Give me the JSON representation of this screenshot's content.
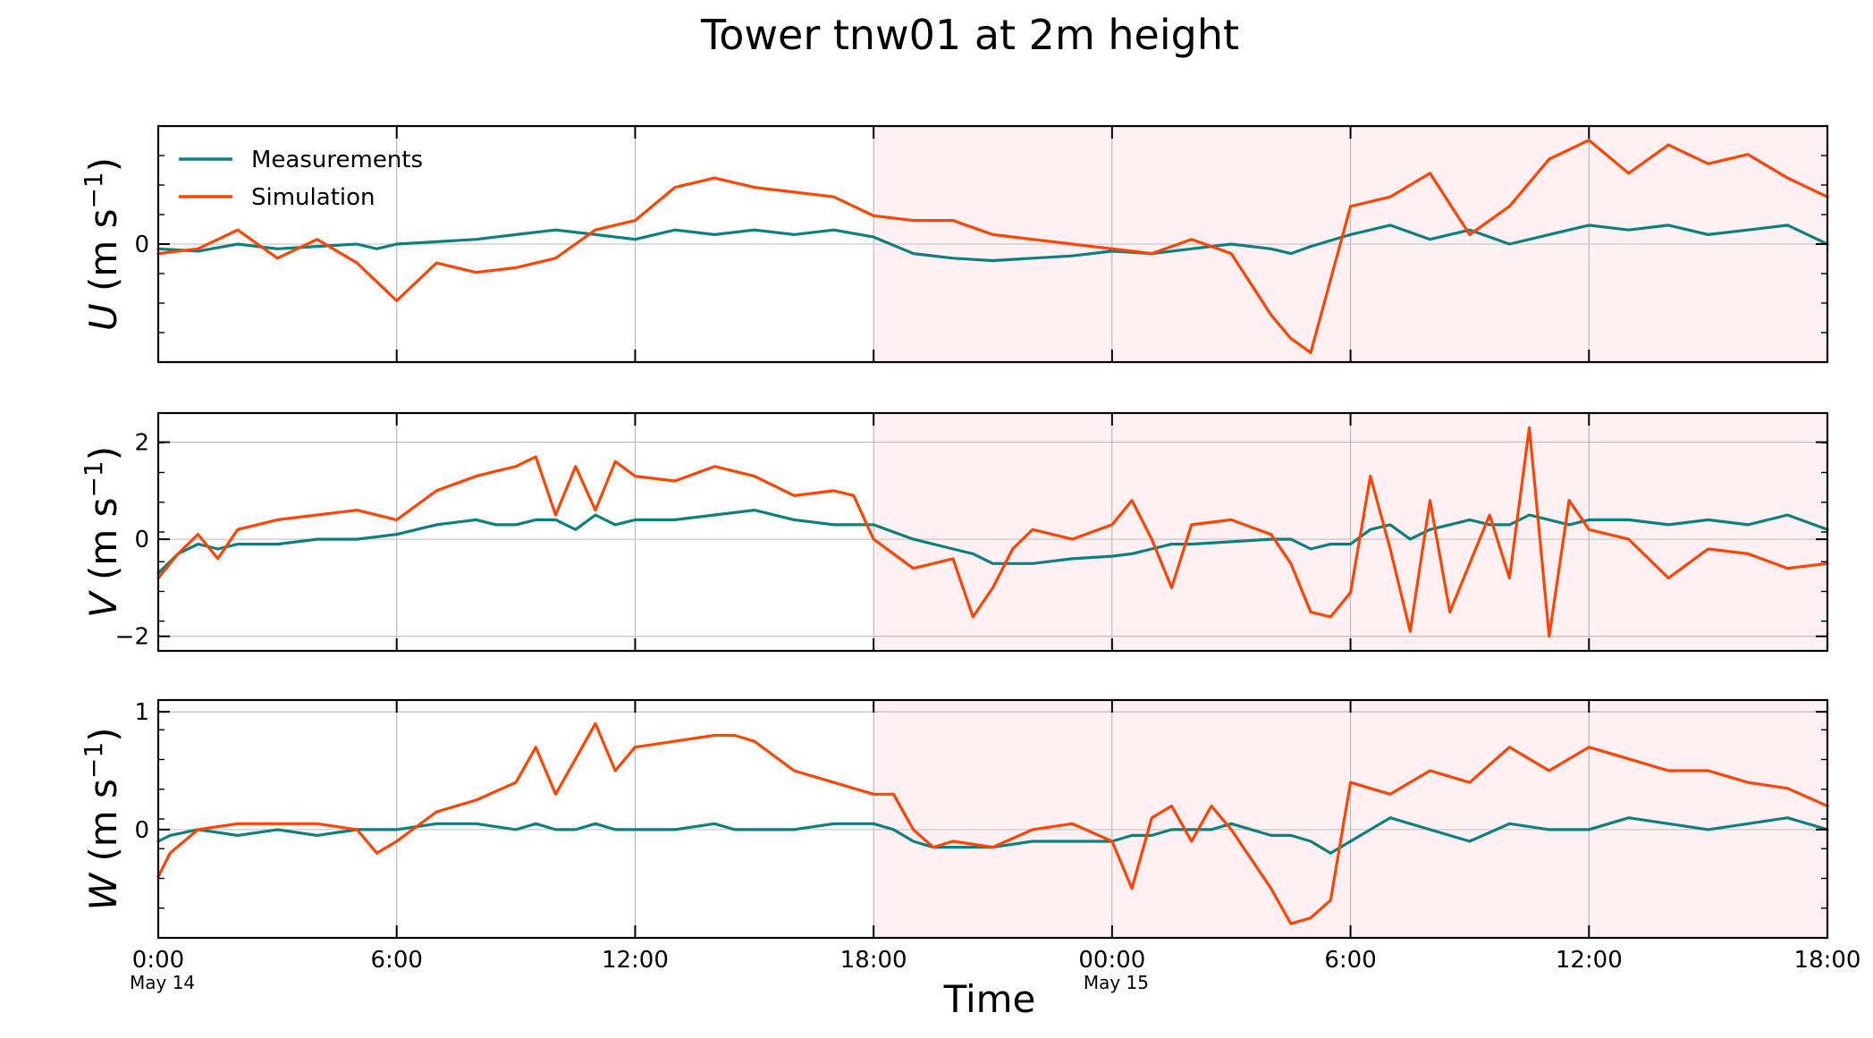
{
  "title": "Tower tnw01 at 2m height",
  "x_axis": {
    "title": "Time",
    "tick_labels": [
      "0:00",
      "6:00",
      "12:00",
      "18:00",
      "00:00",
      "6:00",
      "12:00",
      "18:00"
    ],
    "date_labels": [
      {
        "label": "May 14",
        "tick": 0
      },
      {
        "label": "May 15",
        "tick": 4
      }
    ],
    "range_hours": [
      0,
      42
    ]
  },
  "shaded_region": {
    "from_hours": 18,
    "to_hours": 42,
    "color": "#fff0f4"
  },
  "legend": {
    "placement": "upper-left of first panel",
    "items": [
      {
        "label": "Measurements",
        "color": "#0e7f7f"
      },
      {
        "label": "Simulation",
        "color": "#ff4500"
      }
    ]
  },
  "chart_data": [
    {
      "type": "line",
      "panel": "U",
      "ylabel": {
        "var": "U",
        "unit": "(m s",
        "exp": "−1",
        "close": ")"
      },
      "ylim": [
        -2.5,
        2.5
      ],
      "y_ticks": [
        {
          "value": 0,
          "label": "0"
        }
      ],
      "x_hours": [
        0,
        1,
        2,
        3,
        4,
        5,
        5.5,
        6,
        7,
        8,
        9,
        10,
        11,
        12,
        13,
        14,
        15,
        16,
        17,
        18,
        19,
        20,
        21,
        22,
        23,
        24,
        25,
        26,
        27,
        28,
        28.5,
        29,
        30,
        31,
        32,
        33,
        34,
        35,
        36,
        37,
        38,
        39,
        40,
        41,
        42
      ],
      "series": [
        {
          "name": "Measurements",
          "values": [
            -0.1,
            -0.15,
            0.0,
            -0.1,
            -0.05,
            0.0,
            -0.1,
            0.0,
            0.05,
            0.1,
            0.2,
            0.3,
            0.2,
            0.1,
            0.3,
            0.2,
            0.3,
            0.2,
            0.3,
            0.15,
            -0.2,
            -0.3,
            -0.35,
            -0.3,
            -0.25,
            -0.15,
            -0.2,
            -0.1,
            0.0,
            -0.1,
            -0.2,
            -0.05,
            0.2,
            0.4,
            0.1,
            0.3,
            0.0,
            0.2,
            0.4,
            0.3,
            0.4,
            0.2,
            0.3,
            0.4,
            0.0
          ]
        },
        {
          "name": "Simulation",
          "values": [
            -0.2,
            -0.1,
            0.3,
            -0.3,
            0.1,
            -0.4,
            -0.8,
            -1.2,
            -0.4,
            -0.6,
            -0.5,
            -0.3,
            0.3,
            0.5,
            1.2,
            1.4,
            1.2,
            1.1,
            1.0,
            0.6,
            0.5,
            0.5,
            0.2,
            0.1,
            0.0,
            -0.1,
            -0.2,
            0.1,
            -0.2,
            -1.5,
            -2.0,
            -2.3,
            0.8,
            1.0,
            1.5,
            0.2,
            0.8,
            1.8,
            2.2,
            1.5,
            2.1,
            1.7,
            1.9,
            1.4,
            1.0
          ]
        }
      ]
    },
    {
      "type": "line",
      "panel": "V",
      "ylabel": {
        "var": "V",
        "unit": "(m s",
        "exp": "−1",
        "close": ")"
      },
      "ylim": [
        -2.3,
        2.6
      ],
      "y_ticks": [
        {
          "value": 2,
          "label": "2"
        },
        {
          "value": 0,
          "label": "0"
        },
        {
          "value": -2,
          "label": "−2"
        }
      ],
      "x_hours": [
        0,
        0.5,
        1,
        1.5,
        2,
        3,
        4,
        5,
        6,
        7,
        8,
        8.5,
        9,
        9.5,
        10,
        10.5,
        11,
        11.5,
        12,
        13,
        14,
        15,
        16,
        17,
        17.5,
        18,
        19,
        20,
        20.5,
        21,
        21.5,
        22,
        23,
        24,
        24.5,
        25,
        25.5,
        26,
        27,
        28,
        28.5,
        29,
        29.5,
        30,
        30.5,
        31,
        31.5,
        32,
        32.5,
        33,
        33.5,
        34,
        34.5,
        35,
        35.5,
        36,
        37,
        38,
        39,
        40,
        41,
        42
      ],
      "series": [
        {
          "name": "Measurements",
          "values": [
            -0.7,
            -0.3,
            -0.1,
            -0.2,
            -0.1,
            -0.1,
            0.0,
            0.0,
            0.1,
            0.3,
            0.4,
            0.3,
            0.3,
            0.4,
            0.4,
            0.2,
            0.5,
            0.3,
            0.4,
            0.4,
            0.5,
            0.6,
            0.4,
            0.3,
            0.3,
            0.3,
            0.0,
            -0.2,
            -0.3,
            -0.5,
            -0.5,
            -0.5,
            -0.4,
            -0.35,
            -0.3,
            -0.2,
            -0.1,
            -0.1,
            -0.05,
            0.0,
            0.0,
            -0.2,
            -0.1,
            -0.1,
            0.2,
            0.3,
            0.0,
            0.2,
            0.3,
            0.4,
            0.3,
            0.3,
            0.5,
            0.4,
            0.3,
            0.4,
            0.4,
            0.3,
            0.4,
            0.3,
            0.5,
            0.2
          ]
        },
        {
          "name": "Simulation",
          "values": [
            -0.8,
            -0.3,
            0.1,
            -0.4,
            0.2,
            0.4,
            0.5,
            0.6,
            0.4,
            1.0,
            1.3,
            1.4,
            1.5,
            1.7,
            0.5,
            1.5,
            0.6,
            1.6,
            1.3,
            1.2,
            1.5,
            1.3,
            0.9,
            1.0,
            0.9,
            0.0,
            -0.6,
            -0.4,
            -1.6,
            -1.0,
            -0.2,
            0.2,
            0.0,
            0.3,
            0.8,
            0.0,
            -1.0,
            0.3,
            0.4,
            0.1,
            -0.5,
            -1.5,
            -1.6,
            -1.1,
            1.3,
            -0.2,
            -1.9,
            0.8,
            -1.5,
            -0.5,
            0.5,
            -0.8,
            2.3,
            -2.0,
            0.8,
            0.2,
            0.0,
            -0.8,
            -0.2,
            -0.3,
            -0.6,
            -0.5
          ]
        }
      ]
    },
    {
      "type": "line",
      "panel": "W",
      "ylabel": {
        "var": "W",
        "unit": "(m s",
        "exp": "−1",
        "close": ")"
      },
      "ylim": [
        -0.92,
        1.1
      ],
      "y_ticks": [
        {
          "value": 1,
          "label": "1"
        },
        {
          "value": 0,
          "label": "0"
        }
      ],
      "x_hours": [
        0,
        0.3,
        1,
        2,
        3,
        4,
        5,
        5.5,
        6,
        7,
        8,
        9,
        9.5,
        10,
        10.5,
        11,
        11.5,
        12,
        13,
        14,
        14.5,
        15,
        16,
        17,
        18,
        18.5,
        19,
        19.5,
        20,
        21,
        22,
        23,
        24,
        24.5,
        25,
        25.5,
        26,
        26.5,
        27,
        28,
        28.5,
        29,
        29.5,
        30,
        31,
        32,
        33,
        34,
        35,
        36,
        37,
        38,
        39,
        40,
        41,
        42
      ],
      "series": [
        {
          "name": "Measurements",
          "values": [
            -0.1,
            -0.05,
            0.0,
            -0.05,
            0.0,
            -0.05,
            0.0,
            0.0,
            0.0,
            0.05,
            0.05,
            0.0,
            0.05,
            0.0,
            0.0,
            0.05,
            0.0,
            0.0,
            0.0,
            0.05,
            0.0,
            0.0,
            0.0,
            0.05,
            0.05,
            0.0,
            -0.1,
            -0.15,
            -0.15,
            -0.15,
            -0.1,
            -0.1,
            -0.1,
            -0.05,
            -0.05,
            0.0,
            0.0,
            0.0,
            0.05,
            -0.05,
            -0.05,
            -0.1,
            -0.2,
            -0.1,
            0.1,
            0.0,
            -0.1,
            0.05,
            0.0,
            0.0,
            0.1,
            0.05,
            0.0,
            0.05,
            0.1,
            0.0
          ]
        },
        {
          "name": "Simulation",
          "values": [
            -0.4,
            -0.2,
            0.0,
            0.05,
            0.05,
            0.05,
            0.0,
            -0.2,
            -0.1,
            0.15,
            0.25,
            0.4,
            0.7,
            0.3,
            0.6,
            0.9,
            0.5,
            0.7,
            0.75,
            0.8,
            0.8,
            0.75,
            0.5,
            0.4,
            0.3,
            0.3,
            0.0,
            -0.15,
            -0.1,
            -0.15,
            0.0,
            0.05,
            -0.1,
            -0.5,
            0.1,
            0.2,
            -0.1,
            0.2,
            0.0,
            -0.5,
            -0.8,
            -0.75,
            -0.6,
            0.4,
            0.3,
            0.5,
            0.4,
            0.7,
            0.5,
            0.7,
            0.6,
            0.5,
            0.5,
            0.4,
            0.35,
            0.2
          ]
        }
      ]
    }
  ]
}
